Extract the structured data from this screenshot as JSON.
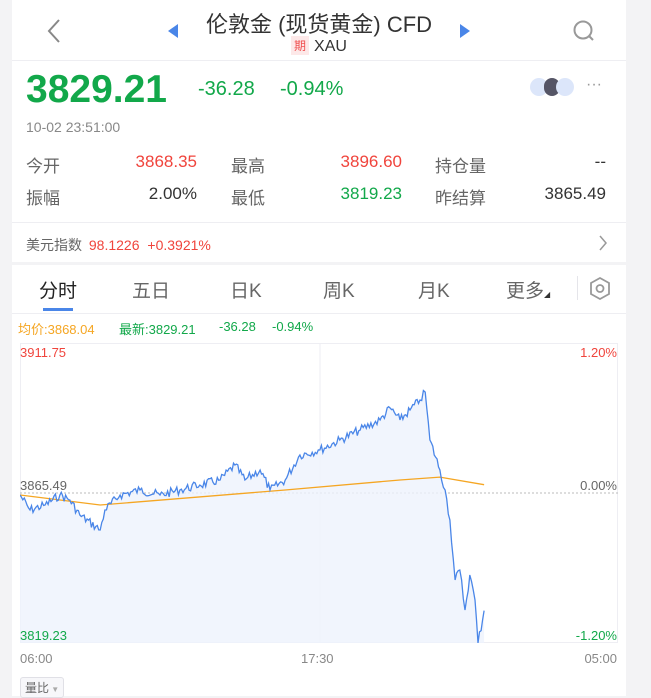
{
  "header": {
    "title": "伦敦金 (现货黄金) CFD",
    "badge": "期",
    "symbol": "XAU",
    "back_icon": "chevron-left-icon",
    "search_icon": "search-icon",
    "prev_icon": "triangle-left-icon",
    "next_icon": "triangle-right-icon"
  },
  "quote": {
    "price": "3829.21",
    "change": "-36.28",
    "change_pct": "-0.94%",
    "time": "10-02 23:51:00",
    "more_icon": "ellipsis-icon"
  },
  "stats": [
    {
      "label": "今开",
      "value": "3868.35",
      "color": "red"
    },
    {
      "label": "最高",
      "value": "3896.60",
      "color": "red"
    },
    {
      "label": "持仓量",
      "value": "--",
      "color": "dark"
    },
    {
      "label": "振幅",
      "value": "2.00%",
      "color": "dark"
    },
    {
      "label": "最低",
      "value": "3819.23",
      "color": "green"
    },
    {
      "label": "昨结算",
      "value": "3865.49",
      "color": "dark"
    }
  ],
  "dollar_index": {
    "label": "美元指数",
    "value": "98.1226",
    "change": "+0.3921%"
  },
  "tabs": [
    {
      "label": "分时",
      "active": true
    },
    {
      "label": "五日"
    },
    {
      "label": "日K"
    },
    {
      "label": "周K"
    },
    {
      "label": "月K"
    },
    {
      "label": "更多"
    }
  ],
  "legend": {
    "avg": "均价:3868.04",
    "latest": "最新:3829.21",
    "change": "-36.28",
    "pct": "-0.94%"
  },
  "colors": {
    "green": "#12a84a",
    "red": "#f0443c",
    "line": "#4a86e8",
    "avg": "#f5a623",
    "accent": "#4a86e8"
  },
  "chart_data": {
    "type": "line",
    "y_labels": {
      "top": "3911.75",
      "mid": "3865.49",
      "bottom": "3819.23"
    },
    "pct_labels": {
      "top": "1.20%",
      "mid": "0.00%",
      "bottom": "-1.20%"
    },
    "x_labels": [
      "06:00",
      "17:30",
      "05:00"
    ],
    "ylim": [
      3819.23,
      3911.75
    ],
    "xlim": [
      "06:00",
      "05:00"
    ],
    "series": [
      {
        "key": "price",
        "points": [
          [
            "06:00",
            3864.87
          ],
          [
            "06:23",
            3860.25
          ],
          [
            "06:58",
            3861.79
          ],
          [
            "07:32",
            3864.87
          ],
          [
            "07:55",
            3863.33
          ],
          [
            "08:18",
            3858.7
          ],
          [
            "09:05",
            3854.08
          ],
          [
            "09:16",
            3860.25
          ],
          [
            "09:51",
            3864.87
          ],
          [
            "10:37",
            3866.42
          ],
          [
            "11:23",
            3864.87
          ],
          [
            "12:09",
            3866.42
          ],
          [
            "12:55",
            3867.96
          ],
          [
            "13:42",
            3869.5
          ],
          [
            "14:16",
            3874.13
          ],
          [
            "14:39",
            3869.5
          ],
          [
            "15:14",
            3872.58
          ],
          [
            "15:37",
            3866.42
          ],
          [
            "16:12",
            3869.5
          ],
          [
            "16:46",
            3877.21
          ],
          [
            "17:32",
            3878.75
          ],
          [
            "18:18",
            3881.83
          ],
          [
            "19:05",
            3884.92
          ],
          [
            "19:51",
            3888.0
          ],
          [
            "20:14",
            3891.7
          ],
          [
            "20:37",
            3888.0
          ],
          [
            "21:00",
            3891.09
          ],
          [
            "21:23",
            3894.17
          ],
          [
            "21:35",
            3896.6
          ],
          [
            "21:46",
            3881.83
          ],
          [
            "22:09",
            3872.58
          ],
          [
            "22:21",
            3866.42
          ],
          [
            "22:32",
            3857.16
          ],
          [
            "22:44",
            3838.66
          ],
          [
            "22:55",
            3841.74
          ],
          [
            "23:07",
            3829.41
          ],
          [
            "23:18",
            3840.2
          ],
          [
            "23:30",
            3832.49
          ],
          [
            "23:37",
            3819.23
          ],
          [
            "23:51",
            3829.21
          ]
        ]
      },
      {
        "key": "avg",
        "points": [
          [
            "06:00",
            3864.87
          ],
          [
            "09:05",
            3861.79
          ],
          [
            "16:12",
            3866.42
          ],
          [
            "20:37",
            3869.5
          ],
          [
            "22:09",
            3870.4
          ],
          [
            "23:51",
            3868.04
          ]
        ]
      }
    ]
  },
  "footer": {
    "ratio_button": "量比"
  }
}
